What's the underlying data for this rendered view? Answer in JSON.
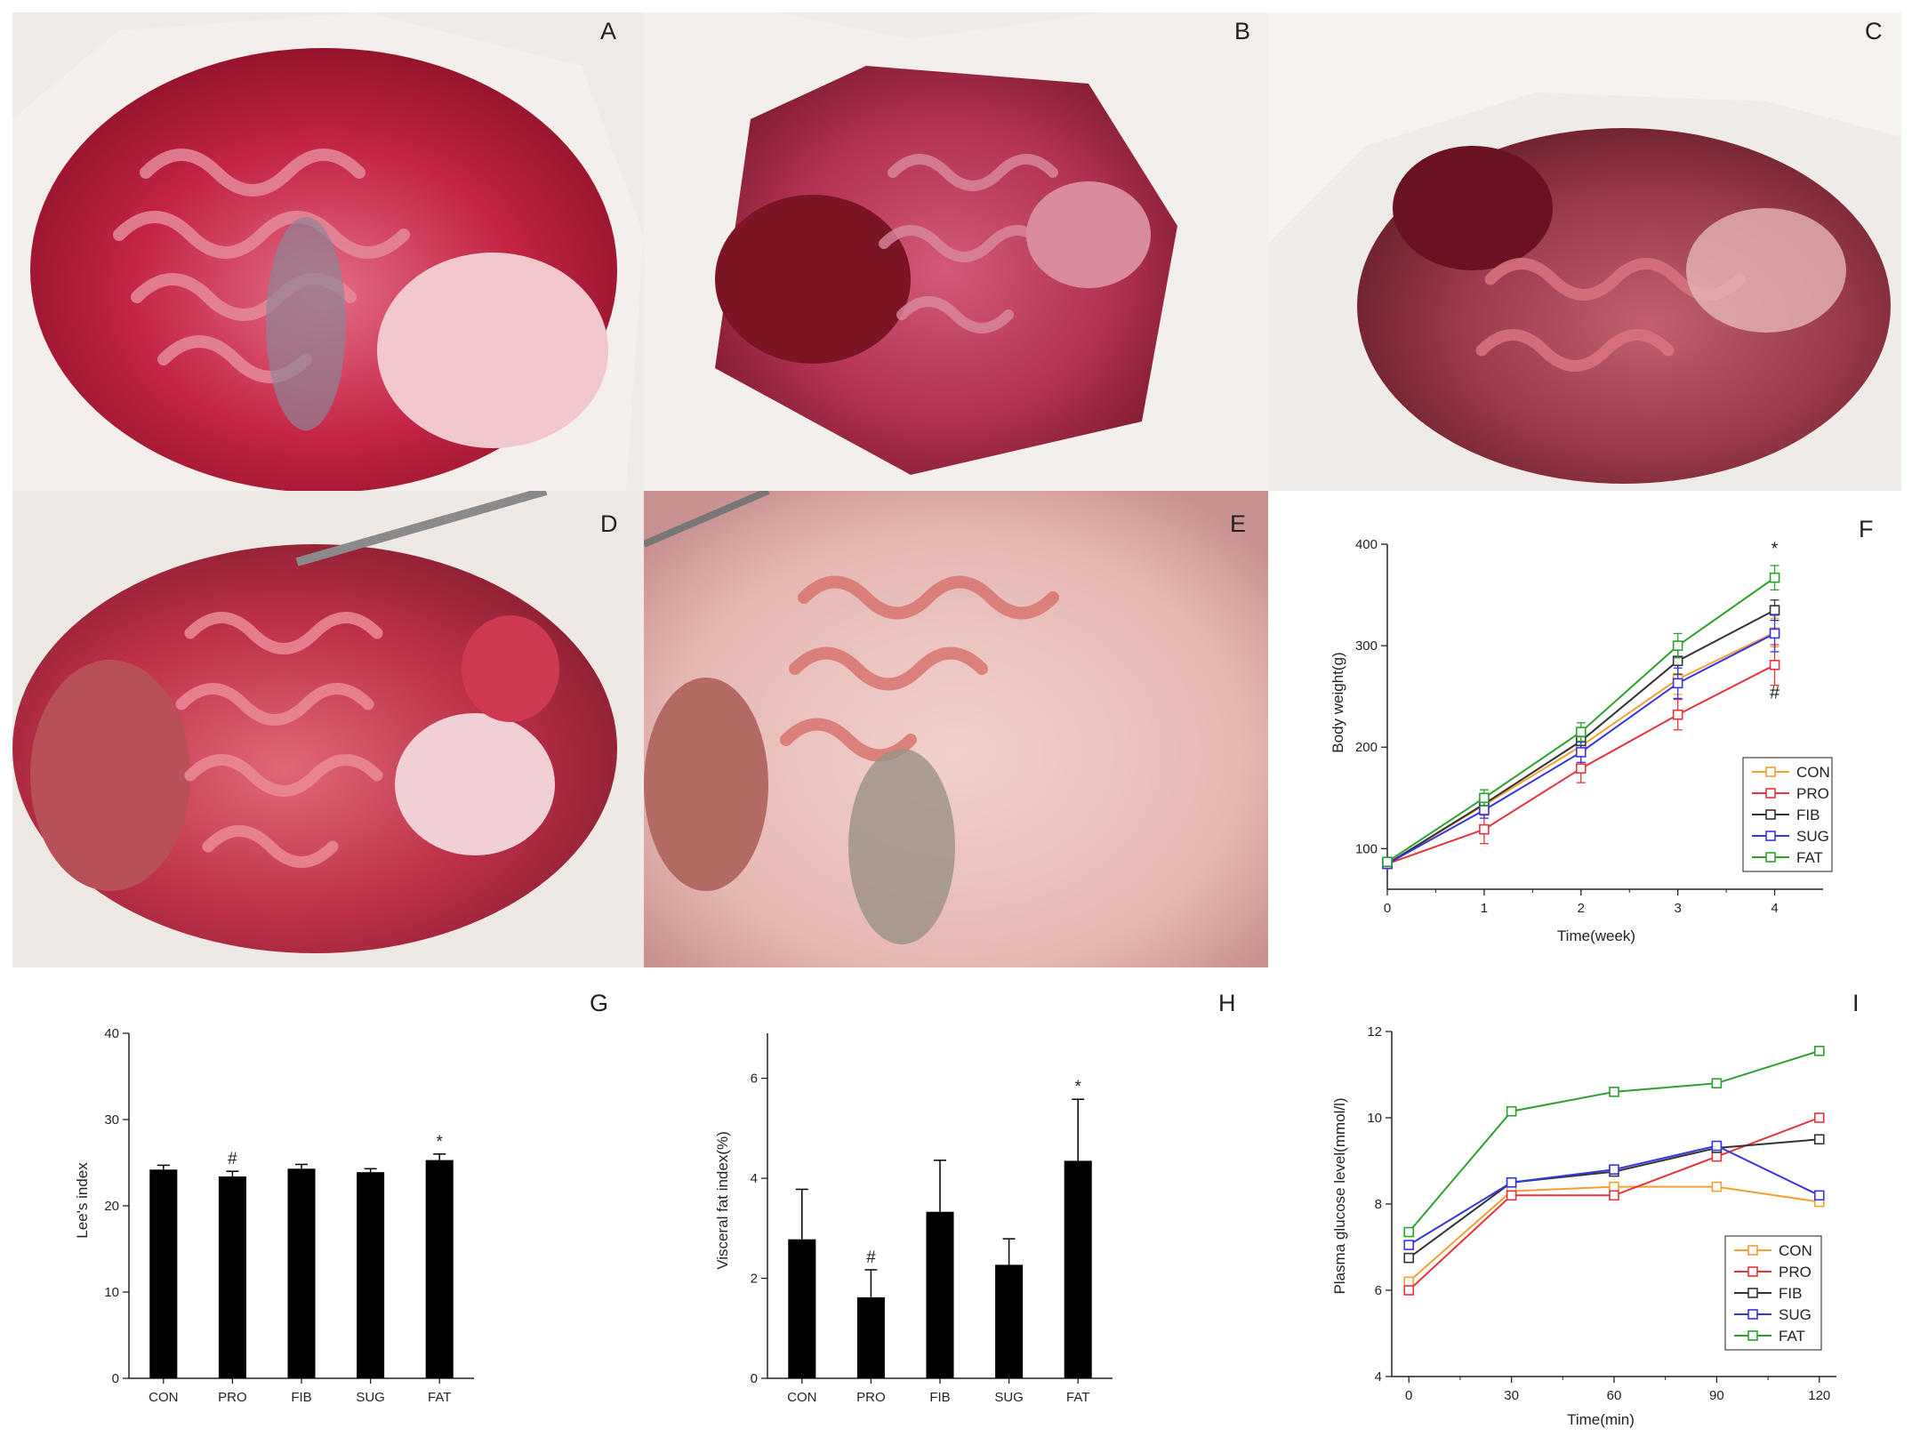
{
  "panels": {
    "A": "A",
    "B": "B",
    "C": "C",
    "D": "D",
    "E": "E",
    "F": "F",
    "G": "G",
    "H": "H",
    "I": "I"
  },
  "colors": {
    "CON": "#f5a030",
    "PRO": "#e8343a",
    "FIB": "#333333",
    "SUG": "#3535e0",
    "FAT": "#2ea02e",
    "bar": "#000000"
  },
  "chart_data": [
    {
      "id": "F",
      "type": "line",
      "xlabel": "Time(week)",
      "ylabel": "Body weight(g)",
      "x": [
        0,
        1,
        2,
        3,
        4
      ],
      "xticks": [
        "0",
        "1",
        "2",
        "3",
        "4"
      ],
      "xlim": [
        0,
        4.5
      ],
      "ylim": [
        60,
        400
      ],
      "yticks": [
        100,
        200,
        300,
        400
      ],
      "legend_position": "bottom-right",
      "series": [
        {
          "name": "CON",
          "values": [
            85,
            143,
            201,
            267,
            313
          ],
          "err": [
            3,
            8,
            10,
            15,
            14
          ]
        },
        {
          "name": "PRO",
          "values": [
            85,
            119,
            179,
            232,
            281
          ],
          "err": [
            3,
            14,
            14,
            15,
            20
          ]
        },
        {
          "name": "FIB",
          "values": [
            85,
            144,
            206,
            285,
            335
          ],
          "err": [
            3,
            8,
            10,
            13,
            10
          ]
        },
        {
          "name": "SUG",
          "values": [
            85,
            138,
            195,
            263,
            312
          ],
          "err": [
            3,
            8,
            10,
            15,
            18
          ]
        },
        {
          "name": "FAT",
          "values": [
            87,
            150,
            215,
            300,
            367
          ],
          "err": [
            3,
            8,
            9,
            12,
            12
          ]
        }
      ],
      "annotations": [
        {
          "text": "*",
          "x": 4,
          "y": 390
        },
        {
          "text": "#",
          "x": 4,
          "y": 248
        }
      ]
    },
    {
      "id": "G",
      "type": "bar",
      "ylabel": "Lee's index",
      "categories": [
        "CON",
        "PRO",
        "FIB",
        "SUG",
        "FAT"
      ],
      "values": [
        24.2,
        23.4,
        24.3,
        23.9,
        25.3
      ],
      "err": [
        0.5,
        0.6,
        0.5,
        0.4,
        0.7
      ],
      "ylim": [
        0,
        40
      ],
      "yticks": [
        0,
        10,
        20,
        30,
        40
      ],
      "annotations": [
        {
          "text": "#",
          "category": "PRO"
        },
        {
          "text": "*",
          "category": "FAT"
        }
      ]
    },
    {
      "id": "H",
      "type": "bar",
      "ylabel": "Visceral fat index(%)",
      "categories": [
        "CON",
        "PRO",
        "FIB",
        "SUG",
        "FAT"
      ],
      "values": [
        2.78,
        1.62,
        3.33,
        2.27,
        4.35
      ],
      "err": [
        1.0,
        0.55,
        1.03,
        0.52,
        1.23
      ],
      "ylim": [
        0,
        6.9
      ],
      "yticks": [
        0,
        2,
        4,
        6
      ],
      "annotations": [
        {
          "text": "#",
          "category": "PRO"
        },
        {
          "text": "*",
          "category": "FAT"
        }
      ]
    },
    {
      "id": "I",
      "type": "line",
      "xlabel": "Time(min)",
      "ylabel": "Plasma glucose level(mmol/l)",
      "x": [
        0,
        30,
        60,
        90,
        120
      ],
      "xticks": [
        "0",
        "30",
        "60",
        "90",
        "120"
      ],
      "xlim": [
        -5,
        125
      ],
      "ylim": [
        4,
        12
      ],
      "yticks": [
        4,
        6,
        8,
        10,
        12
      ],
      "legend_position": "bottom-right",
      "series": [
        {
          "name": "CON",
          "values": [
            6.2,
            8.3,
            8.4,
            8.4,
            8.05
          ]
        },
        {
          "name": "PRO",
          "values": [
            6.0,
            8.2,
            8.2,
            9.1,
            10.0
          ]
        },
        {
          "name": "FIB",
          "values": [
            6.75,
            8.5,
            8.75,
            9.3,
            9.5
          ]
        },
        {
          "name": "SUG",
          "values": [
            7.05,
            8.5,
            8.8,
            9.35,
            8.2
          ]
        },
        {
          "name": "FAT",
          "values": [
            7.35,
            10.15,
            10.6,
            10.8,
            11.55
          ]
        }
      ]
    }
  ]
}
